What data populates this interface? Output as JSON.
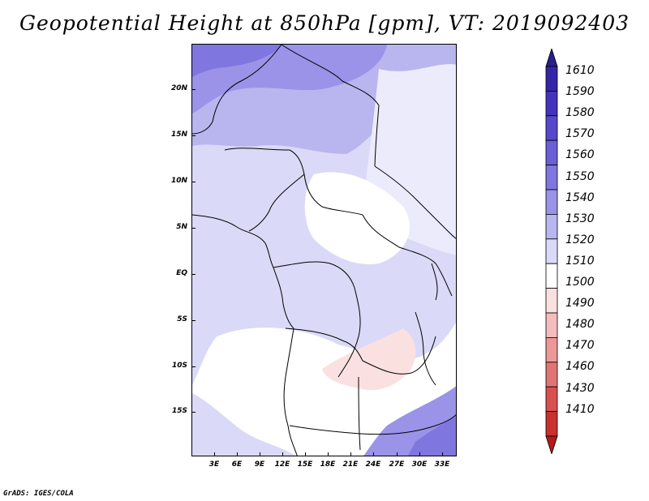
{
  "title": "Geopotential Height at 850hPa [gpm], VT: 2019092403",
  "credit": "GrADS: IGES/COLA",
  "lat_labels": [
    "20N",
    "15N",
    "10N",
    "5N",
    "EQ",
    "5S",
    "10S",
    "15S"
  ],
  "lon_labels": [
    "3E",
    "6E",
    "9E",
    "12E",
    "15E",
    "18E",
    "21E",
    "24E",
    "27E",
    "30E",
    "33E"
  ],
  "colorbar": {
    "levels": [
      "1610",
      "1590",
      "1580",
      "1570",
      "1560",
      "1550",
      "1540",
      "1530",
      "1520",
      "1510",
      "1500",
      "1490",
      "1480",
      "1470",
      "1460",
      "1430",
      "1410"
    ],
    "colors": [
      "#2a1d8c",
      "#3525a8",
      "#4232bd",
      "#5647cc",
      "#6a5fd6",
      "#7f76e0",
      "#9a93e8",
      "#b9b5ef",
      "#dad9f7",
      "#ffffff",
      "#fbe0e0",
      "#f4bcbc",
      "#ec9898",
      "#e37474",
      "#d85050",
      "#c93030",
      "#b31b1b"
    ]
  }
}
